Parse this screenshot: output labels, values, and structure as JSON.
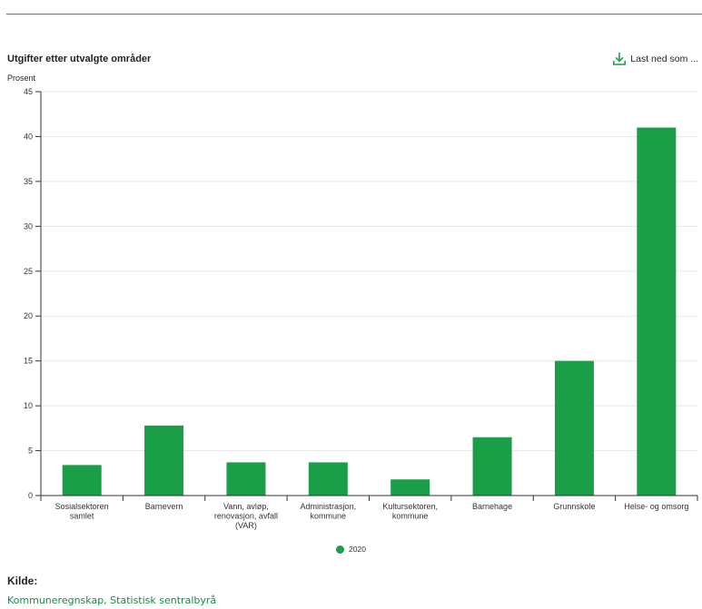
{
  "chart_title": "Utgifter etter utvalgte områder",
  "download": {
    "label": "Last ned som ...",
    "icon": "download-icon"
  },
  "colors": {
    "bar": "#1a9e47",
    "link": "#1a8a45",
    "download_icon": "#1a9e47"
  },
  "legend": {
    "label": "2020"
  },
  "source": {
    "heading": "Kilde:",
    "text": "Kommuneregnskap, Statistisk sentralbyrå"
  },
  "chart_data": {
    "type": "bar",
    "ylabel": "Prosent",
    "ylim": [
      0,
      45
    ],
    "yticks": [
      0,
      5,
      10,
      15,
      20,
      25,
      30,
      35,
      40,
      45
    ],
    "grid": true,
    "legend_position": "bottom-center",
    "categories": [
      [
        "Sosialsektoren",
        "samlet"
      ],
      [
        "Barnevern"
      ],
      [
        "Vann, avløp,",
        "renovasjon, avfall",
        "(VAR)"
      ],
      [
        "Administrasjon,",
        "kommune"
      ],
      [
        "Kultursektoren,",
        "kommune"
      ],
      [
        "Barnehage"
      ],
      [
        "Grunnskole"
      ],
      [
        "Helse- og omsorg"
      ]
    ],
    "series": [
      {
        "name": "2020",
        "values": [
          3.4,
          7.8,
          3.7,
          3.7,
          1.8,
          6.5,
          15.0,
          41.0
        ]
      }
    ]
  }
}
